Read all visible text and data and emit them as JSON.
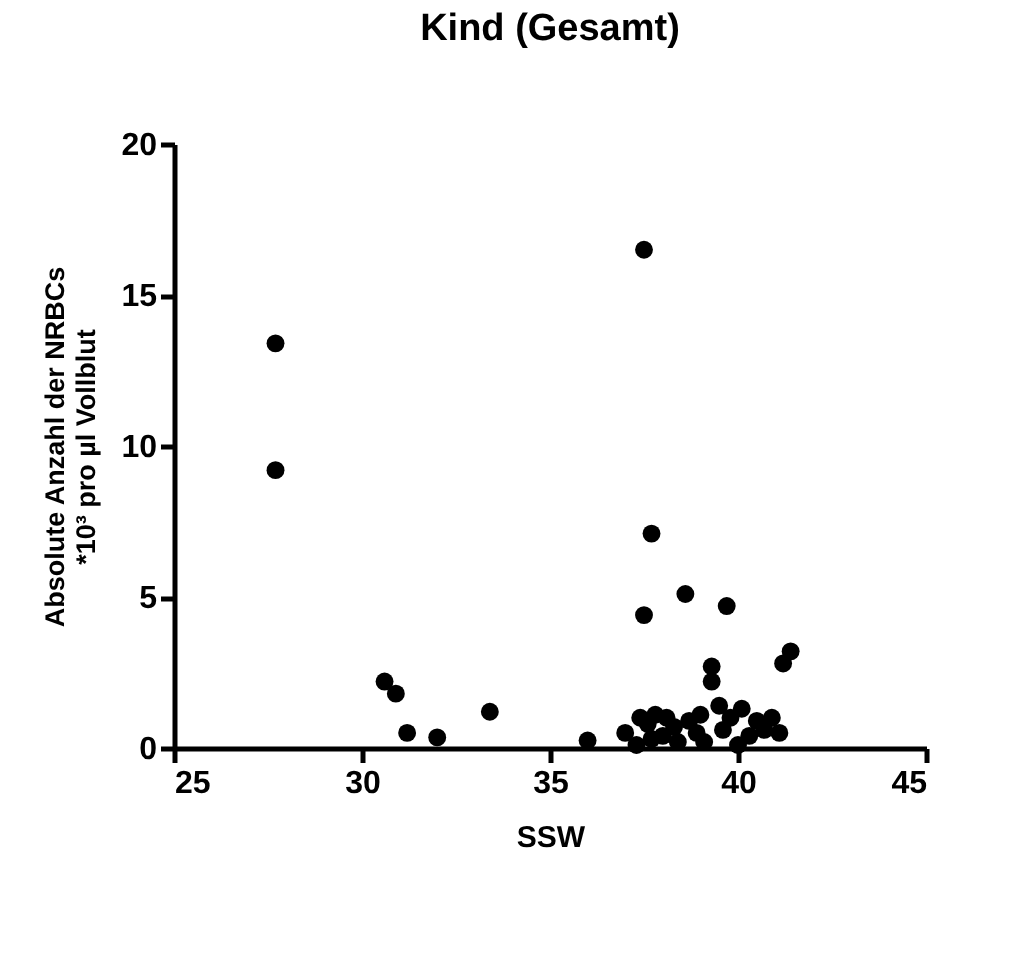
{
  "chart_data": {
    "type": "scatter",
    "title": "Kind (Gesamt)",
    "xlabel": "SSW",
    "ylabel": "Absolute Anzahl der NRBCs *10³ pro µl Vollblut",
    "x": [
      27.7,
      27.7,
      30.6,
      30.9,
      31.2,
      32.0,
      33.4,
      36.0,
      37.0,
      37.4,
      37.5,
      37.5,
      37.6,
      37.7,
      37.7,
      37.8,
      38.0,
      38.1,
      38.3,
      38.4,
      38.6,
      38.7,
      38.9,
      39.0,
      39.3,
      39.3,
      39.5,
      39.6,
      39.7,
      39.8,
      40.0,
      40.3,
      40.5,
      40.7,
      40.9,
      41.1,
      41.2,
      41.4,
      37.3,
      39.1,
      40.1
    ],
    "values": [
      13.4,
      9.2,
      2.2,
      1.8,
      0.5,
      0.35,
      1.2,
      0.25,
      0.5,
      1.0,
      16.5,
      4.4,
      0.8,
      7.1,
      0.3,
      1.1,
      0.4,
      1.0,
      0.7,
      0.2,
      5.1,
      0.9,
      0.5,
      1.1,
      2.7,
      2.2,
      1.4,
      0.6,
      4.7,
      1.0,
      0.1,
      0.4,
      0.9,
      0.6,
      1.0,
      0.5,
      2.8,
      3.2,
      0.1,
      0.2,
      1.3
    ],
    "color": "#000000",
    "marker": "circle",
    "xlim": [
      25,
      45
    ],
    "xticks": [
      25,
      30,
      35,
      40,
      45
    ],
    "ylim": [
      0,
      20
    ],
    "yticks": [
      0,
      5,
      10,
      15,
      20
    ],
    "grid": false
  }
}
